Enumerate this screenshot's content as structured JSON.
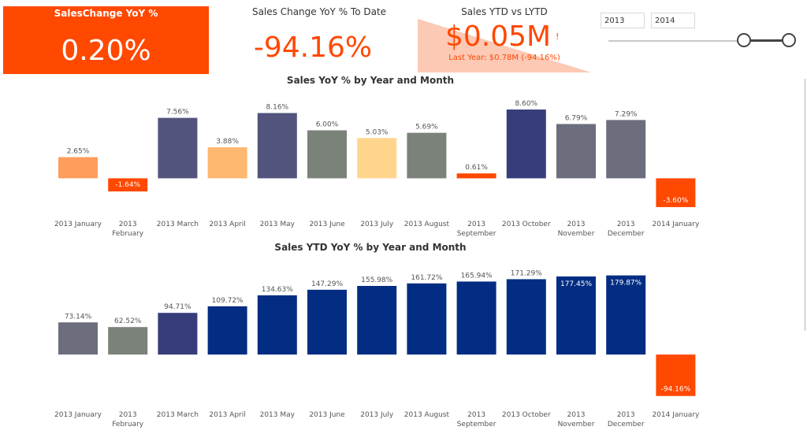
{
  "kpi_sales_change": {
    "title": "SalesChange YoY %",
    "value": "0.20%"
  },
  "kpi_sales_change_to_date": {
    "title": "Sales Change YoY % To Date",
    "value": "-94.16%"
  },
  "kpi_sales_ytd": {
    "title": "Sales YTD vs LYTD",
    "value": "$0.05M",
    "marker": "!",
    "subtitle": "Last Year: $0.78M (-94.16%)"
  },
  "date_slicer": {
    "start": "2013",
    "end": "2014"
  },
  "colors": {
    "orange": "#ff4800",
    "navy": "#022d83",
    "pale_orange": "#fcc9b5"
  },
  "chart_data": [
    {
      "type": "bar",
      "title": "Sales YoY % by Year and Month",
      "categories": [
        [
          "2013 January"
        ],
        [
          "2013",
          "February"
        ],
        [
          "2013 March"
        ],
        [
          "2013 April"
        ],
        [
          "2013 May"
        ],
        [
          "2013 June"
        ],
        [
          "2013 July"
        ],
        [
          "2013 August"
        ],
        [
          "2013",
          "September"
        ],
        [
          "2013 October"
        ],
        [
          "2013",
          "November"
        ],
        [
          "2013",
          "December"
        ],
        [
          "2014 January"
        ]
      ],
      "values": [
        2.65,
        -1.64,
        7.56,
        3.88,
        8.16,
        6.0,
        5.03,
        5.69,
        0.61,
        8.6,
        6.79,
        7.29,
        -3.6
      ],
      "labels": [
        "2.65%",
        "-1.64%",
        "7.56%",
        "3.88%",
        "8.16%",
        "6.00%",
        "5.03%",
        "5.69%",
        "0.61%",
        "8.60%",
        "6.79%",
        "7.29%",
        "-3.60%"
      ],
      "colors": [
        "#ff9d5c",
        "#ff4800",
        "#52547d",
        "#ffb870",
        "#52547d",
        "#7a8279",
        "#ffd58e",
        "#7a8279",
        "#ff4800",
        "#363d7a",
        "#6c6e7e",
        "#6c6e7e",
        "#ff4800"
      ],
      "ylim": [
        -4,
        9
      ]
    },
    {
      "type": "bar",
      "title": "Sales YTD YoY % by Year and Month",
      "categories": [
        [
          "2013 January"
        ],
        [
          "2013",
          "February"
        ],
        [
          "2013 March"
        ],
        [
          "2013 April"
        ],
        [
          "2013 May"
        ],
        [
          "2013 June"
        ],
        [
          "2013 July"
        ],
        [
          "2013 August"
        ],
        [
          "2013",
          "September"
        ],
        [
          "2013 October"
        ],
        [
          "2013",
          "November"
        ],
        [
          "2013",
          "December"
        ],
        [
          "2014 January"
        ]
      ],
      "values": [
        73.14,
        62.52,
        94.71,
        109.72,
        134.63,
        147.29,
        155.98,
        161.72,
        165.94,
        171.29,
        177.45,
        179.87,
        -94.16
      ],
      "labels": [
        "73.14%",
        "62.52%",
        "94.71%",
        "109.72%",
        "134.63%",
        "147.29%",
        "155.98%",
        "161.72%",
        "165.94%",
        "171.29%",
        "177.45%",
        "179.87%",
        "-94.16%"
      ],
      "colors": [
        "#6c6e7e",
        "#7a8279",
        "#363d7a",
        "#022d83",
        "#022d83",
        "#022d83",
        "#022d83",
        "#022d83",
        "#022d83",
        "#022d83",
        "#022d83",
        "#022d83",
        "#ff4800"
      ],
      "ylim": [
        -100,
        190
      ]
    }
  ]
}
